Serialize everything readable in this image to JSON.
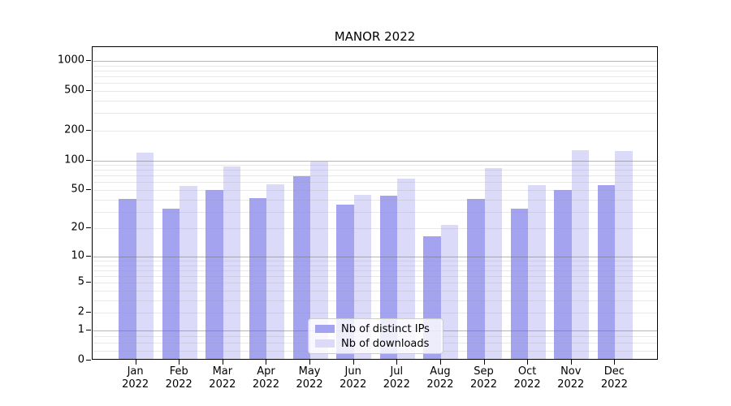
{
  "title": "MANOR 2022",
  "colors": {
    "ips": "#a3a3f0",
    "downloads": "#dbdbf9",
    "grid_major": "#6e6e6e",
    "grid_minor": "#969696",
    "axis": "#000000",
    "legend_border": "#cccccc"
  },
  "legend": {
    "items": [
      {
        "label": "Nb of distinct IPs",
        "series": "ips"
      },
      {
        "label": "Nb of downloads",
        "series": "downloads"
      }
    ]
  },
  "chart_data": {
    "type": "bar",
    "scale": "log1p",
    "title": "MANOR 2022",
    "categories": [
      "Jan",
      "Feb",
      "Mar",
      "Apr",
      "May",
      "Jun",
      "Jul",
      "Aug",
      "Sep",
      "Oct",
      "Nov",
      "Dec"
    ],
    "x_tick_second_line": "2022",
    "series": [
      {
        "name": "Nb of distinct IPs",
        "key": "ips",
        "values": [
          39,
          31,
          48,
          40,
          66,
          34,
          42,
          16,
          39,
          31,
          48,
          54
        ]
      },
      {
        "name": "Nb of downloads",
        "key": "downloads",
        "values": [
          116,
          53,
          84,
          55,
          93,
          43,
          63,
          21,
          81,
          54,
          123,
          120
        ]
      }
    ],
    "y_ticks": [
      1000,
      500,
      200,
      100,
      50,
      20,
      10,
      5,
      2,
      1,
      0
    ],
    "ylim": [
      0,
      1376
    ],
    "grid": true,
    "legend_position": "lower center"
  }
}
